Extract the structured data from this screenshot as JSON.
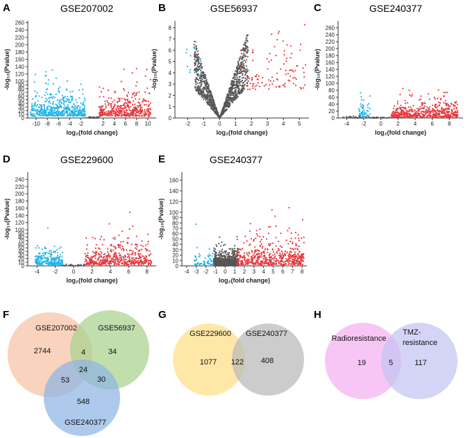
{
  "colors": {
    "up": "#e8383d",
    "down": "#22b6e8",
    "ns": "#555555",
    "axis": "#333333"
  },
  "chart_data": [
    {
      "panel": "A",
      "type": "scatter",
      "title": "GSE207002",
      "xlabel": "log₂(fold change)",
      "ylabel": "-log₁₀(Pvalue)",
      "xlim": [
        -11.5,
        11.5
      ],
      "ylim": [
        0,
        265
      ],
      "xticks": [
        -10,
        -8,
        -6,
        -4,
        -2,
        2,
        4,
        6,
        8,
        10
      ],
      "yticks": [
        0,
        10,
        20,
        30,
        40,
        50,
        60,
        70,
        80,
        90,
        100,
        120,
        140,
        160,
        180,
        200,
        220,
        240,
        260
      ],
      "seed": 11,
      "series": [
        {
          "name": "down",
          "xRange": [
            -11,
            -1.2
          ],
          "yScale": 22,
          "yBase": 5,
          "yMax": 262,
          "count": 520
        },
        {
          "name": "up",
          "xRange": [
            1.2,
            10.5
          ],
          "yScale": 20,
          "yBase": 5,
          "yMax": 262,
          "count": 420
        },
        {
          "name": "ns",
          "xRange": [
            -1.2,
            1.2
          ],
          "yScale": 1.5,
          "yBase": 0,
          "yMax": 4,
          "count": 40
        }
      ]
    },
    {
      "panel": "B",
      "type": "scatter",
      "title": "GSE56937",
      "xlabel": "log₂(fold change)",
      "ylabel": "-log₁₀(Pvalue)",
      "xlim": [
        -2.8,
        5.6
      ],
      "ylim": [
        0,
        8.6
      ],
      "xticks": [
        -2,
        -1,
        0,
        1,
        2,
        3,
        4,
        5
      ],
      "yticks": [
        0,
        1,
        2,
        3,
        4,
        5,
        6,
        7,
        8
      ],
      "seed": 23,
      "shape": "v",
      "series": [
        {
          "name": "ns",
          "xRange": [
            -1.6,
            1.8
          ],
          "yScale": 3.2,
          "yBase": 0,
          "yMax": 7.8,
          "count": 1100
        },
        {
          "name": "up",
          "xRange": [
            1.2,
            5.4
          ],
          "yScale": 2.2,
          "yBase": 2.5,
          "yMax": 8.5,
          "count": 110
        },
        {
          "name": "down",
          "xRange": [
            -2.2,
            -1.1
          ],
          "yScale": 1.4,
          "yBase": 3.5,
          "yMax": 7,
          "count": 14
        }
      ]
    },
    {
      "panel": "C",
      "type": "scatter",
      "title": "GSE240377",
      "xlabel": "log₂(fold change)",
      "ylabel": "-log₁₀(Pvalue)",
      "xlim": [
        -5,
        9.6
      ],
      "ylim": [
        0,
        280
      ],
      "xticks": [
        -4,
        -2,
        0,
        2,
        4,
        6,
        8
      ],
      "yticks": [
        0,
        20,
        40,
        60,
        80,
        100,
        120,
        140,
        160,
        180,
        200,
        220,
        240,
        260
      ],
      "seed": 37,
      "series": [
        {
          "name": "down",
          "xRange": [
            -2.6,
            -1.2
          ],
          "yScale": 18,
          "yBase": 2,
          "yMax": 110,
          "count": 60
        },
        {
          "name": "up",
          "xRange": [
            1.2,
            9
          ],
          "yScale": 16,
          "yBase": 2,
          "yMax": 275,
          "count": 520
        },
        {
          "name": "ns",
          "xRange": [
            -4.5,
            1.2
          ],
          "yScale": 2,
          "yBase": 0,
          "yMax": 6,
          "count": 60
        }
      ]
    },
    {
      "panel": "D",
      "type": "scatter",
      "title": "GSE229600",
      "xlabel": "log₂(fold change)",
      "ylabel": "-log₁₀(Pvalue)",
      "xlim": [
        -5,
        9
      ],
      "ylim": [
        0,
        260
      ],
      "xticks": [
        -4,
        -2,
        0,
        2,
        4,
        6,
        8
      ],
      "yticks": [
        0,
        10,
        20,
        30,
        40,
        50,
        60,
        70,
        80,
        90,
        100,
        120,
        140,
        160,
        180,
        200,
        220,
        240
      ],
      "seed": 53,
      "series": [
        {
          "name": "down",
          "xRange": [
            -4.2,
            -1.2
          ],
          "yScale": 18,
          "yBase": 3,
          "yMax": 145,
          "count": 260
        },
        {
          "name": "up",
          "xRange": [
            1.2,
            8.5
          ],
          "yScale": 22,
          "yBase": 3,
          "yMax": 258,
          "count": 480
        },
        {
          "name": "ns",
          "xRange": [
            -1.2,
            1.2
          ],
          "yScale": 2,
          "yBase": 0,
          "yMax": 6,
          "count": 40
        }
      ]
    },
    {
      "panel": "E",
      "type": "scatter",
      "title": "GSE240377",
      "xlabel": "log₂(fold change)",
      "ylabel": "-log₁₀(Pvalue)",
      "xlim": [
        -4.5,
        8.5
      ],
      "ylim": [
        0,
        175
      ],
      "xticks": [
        -4,
        -3,
        -2,
        -1,
        0,
        1,
        2,
        3,
        4,
        5,
        6,
        7,
        8
      ],
      "yticks": [
        0,
        10,
        20,
        30,
        40,
        50,
        60,
        70,
        80,
        90,
        100,
        120,
        140,
        160
      ],
      "seed": 71,
      "series": [
        {
          "name": "ns",
          "xRange": [
            -1.2,
            1.4
          ],
          "yScale": 14,
          "yBase": 0,
          "yMax": 55,
          "count": 700
        },
        {
          "name": "down",
          "xRange": [
            -3.2,
            -1.2
          ],
          "yScale": 14,
          "yBase": 2,
          "yMax": 105,
          "count": 60
        },
        {
          "name": "up",
          "xRange": [
            1.2,
            8.2
          ],
          "yScale": 16,
          "yBase": 2,
          "yMax": 170,
          "count": 520
        }
      ]
    },
    {
      "panel": "F",
      "type": "venn",
      "sets": [
        {
          "label": "GSE207002",
          "fill": "#f6c2a3"
        },
        {
          "label": "GSE56937",
          "fill": "#a9d18e"
        },
        {
          "label": "GSE240377",
          "fill": "#8eb4e3"
        }
      ],
      "regions": [
        {
          "sets": [
            "GSE207002"
          ],
          "value": "2744"
        },
        {
          "sets": [
            "GSE207002",
            "GSE56937"
          ],
          "value": "4"
        },
        {
          "sets": [
            "GSE56937"
          ],
          "value": "34"
        },
        {
          "sets": [
            "GSE207002",
            "GSE56937",
            "GSE240377"
          ],
          "value": "24"
        },
        {
          "sets": [
            "GSE207002",
            "GSE240377"
          ],
          "value": "53"
        },
        {
          "sets": [
            "GSE56937",
            "GSE240377"
          ],
          "value": "30"
        },
        {
          "sets": [
            "GSE240377"
          ],
          "value": "548"
        }
      ]
    },
    {
      "panel": "G",
      "type": "venn",
      "sets": [
        {
          "label": "GSE229600",
          "fill": "#ffe08a"
        },
        {
          "label": "GSE240377",
          "fill": "#b8b8b8"
        }
      ],
      "regions": [
        {
          "sets": [
            "GSE229600"
          ],
          "value": "1077"
        },
        {
          "sets": [
            "GSE229600",
            "GSE240377"
          ],
          "value": "122"
        },
        {
          "sets": [
            "GSE240377"
          ],
          "value": "408"
        }
      ]
    },
    {
      "panel": "H",
      "type": "venn",
      "sets": [
        {
          "label": "Radioresistance",
          "fill": "#f6b8f2"
        },
        {
          "label": "TMZ-",
          "label2": "resistance",
          "fill": "#c4c3f2"
        }
      ],
      "regions": [
        {
          "sets": [
            "Radioresistance"
          ],
          "value": "19"
        },
        {
          "sets": [
            "Radioresistance",
            "TMZ-resistance"
          ],
          "value": "5"
        },
        {
          "sets": [
            "TMZ-resistance"
          ],
          "value": "117"
        }
      ]
    }
  ]
}
